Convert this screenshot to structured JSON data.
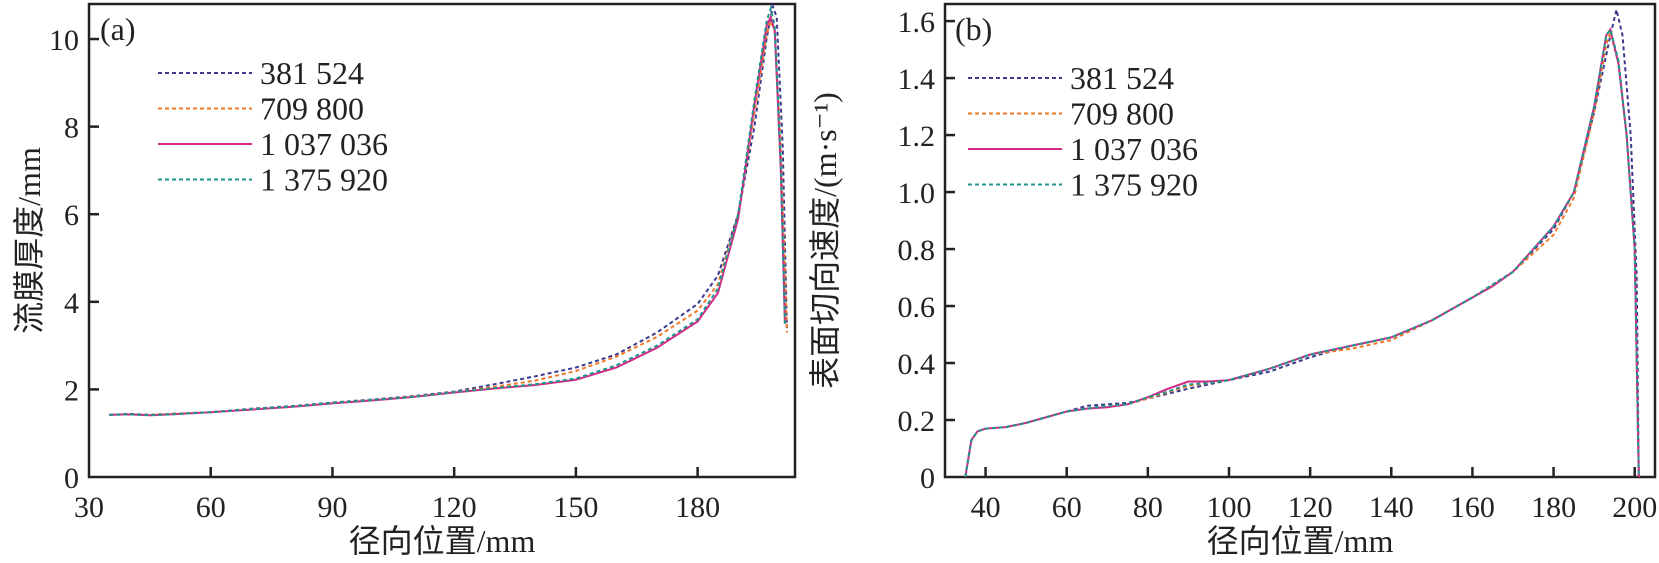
{
  "chart_data": [
    {
      "type": "line",
      "panel_label": "(a)",
      "xlabel": "径向位置/mm",
      "ylabel": "流膜厚度/mm",
      "xlim": [
        30,
        204
      ],
      "ylim": [
        0,
        10.8
      ],
      "xticks": [
        30,
        60,
        90,
        120,
        150,
        180
      ],
      "yticks": [
        0,
        2,
        4,
        6,
        8,
        10
      ],
      "grid": false,
      "legend_position": "top-left",
      "series": [
        {
          "name": "381 524",
          "color": "#3c3a8f",
          "dash": "4,3",
          "points": [
            [
              35,
              1.42
            ],
            [
              40,
              1.44
            ],
            [
              45,
              1.42
            ],
            [
              50,
              1.44
            ],
            [
              60,
              1.48
            ],
            [
              70,
              1.56
            ],
            [
              80,
              1.62
            ],
            [
              90,
              1.7
            ],
            [
              100,
              1.77
            ],
            [
              110,
              1.85
            ],
            [
              120,
              1.95
            ],
            [
              130,
              2.12
            ],
            [
              140,
              2.3
            ],
            [
              150,
              2.5
            ],
            [
              160,
              2.8
            ],
            [
              170,
              3.3
            ],
            [
              180,
              3.95
            ],
            [
              185,
              4.6
            ],
            [
              190,
              6.0
            ],
            [
              194,
              8.0
            ],
            [
              197,
              10.0
            ],
            [
              198.5,
              10.75
            ],
            [
              199.5,
              10.5
            ],
            [
              201,
              7.5
            ],
            [
              202,
              3.4
            ]
          ]
        },
        {
          "name": "709 800",
          "color": "#f07a2a",
          "dash": "4,3",
          "points": [
            [
              35,
              1.42
            ],
            [
              40,
              1.43
            ],
            [
              45,
              1.42
            ],
            [
              50,
              1.44
            ],
            [
              60,
              1.48
            ],
            [
              70,
              1.55
            ],
            [
              80,
              1.61
            ],
            [
              90,
              1.69
            ],
            [
              100,
              1.76
            ],
            [
              110,
              1.84
            ],
            [
              120,
              1.94
            ],
            [
              130,
              2.06
            ],
            [
              140,
              2.2
            ],
            [
              150,
              2.42
            ],
            [
              160,
              2.75
            ],
            [
              170,
              3.2
            ],
            [
              180,
              3.8
            ],
            [
              185,
              4.4
            ],
            [
              190,
              6.0
            ],
            [
              194,
              8.3
            ],
            [
              197,
              10.1
            ],
            [
              198,
              10.4
            ],
            [
              199,
              10.2
            ],
            [
              200.5,
              7.5
            ],
            [
              202,
              3.3
            ]
          ]
        },
        {
          "name": "1 037 036",
          "color": "#d42a86",
          "dash": "",
          "points": [
            [
              35,
              1.42
            ],
            [
              40,
              1.43
            ],
            [
              45,
              1.41
            ],
            [
              50,
              1.43
            ],
            [
              60,
              1.48
            ],
            [
              70,
              1.54
            ],
            [
              80,
              1.6
            ],
            [
              90,
              1.68
            ],
            [
              100,
              1.75
            ],
            [
              110,
              1.83
            ],
            [
              120,
              1.93
            ],
            [
              130,
              2.02
            ],
            [
              140,
              2.1
            ],
            [
              150,
              2.22
            ],
            [
              160,
              2.5
            ],
            [
              170,
              2.95
            ],
            [
              180,
              3.55
            ],
            [
              185,
              4.2
            ],
            [
              190,
              5.9
            ],
            [
              194,
              8.5
            ],
            [
              197,
              10.3
            ],
            [
              198,
              10.5
            ],
            [
              199,
              10.2
            ],
            [
              200.5,
              7.0
            ],
            [
              201.5,
              3.5
            ]
          ]
        },
        {
          "name": "1 375 920",
          "color": "#1f968c",
          "dash": "4,3",
          "points": [
            [
              35,
              1.42
            ],
            [
              40,
              1.43
            ],
            [
              45,
              1.41
            ],
            [
              50,
              1.43
            ],
            [
              60,
              1.48
            ],
            [
              70,
              1.55
            ],
            [
              80,
              1.61
            ],
            [
              90,
              1.69
            ],
            [
              100,
              1.76
            ],
            [
              110,
              1.83
            ],
            [
              120,
              1.94
            ],
            [
              130,
              2.03
            ],
            [
              140,
              2.12
            ],
            [
              150,
              2.25
            ],
            [
              160,
              2.55
            ],
            [
              170,
              3.0
            ],
            [
              180,
              3.6
            ],
            [
              185,
              4.3
            ],
            [
              190,
              6.0
            ],
            [
              194,
              8.6
            ],
            [
              197,
              10.4
            ],
            [
              198,
              10.7
            ],
            [
              199,
              10.3
            ],
            [
              200.5,
              7.2
            ],
            [
              201.5,
              3.5
            ]
          ]
        }
      ]
    },
    {
      "type": "line",
      "panel_label": "(b)",
      "xlabel": "径向位置/mm",
      "ylabel": "表面切向速度/(m·s⁻¹)",
      "xlim": [
        30,
        205
      ],
      "ylim": [
        0,
        1.66
      ],
      "xticks": [
        40,
        60,
        80,
        100,
        120,
        140,
        160,
        180,
        200
      ],
      "yticks": [
        0,
        0.2,
        0.4,
        0.6,
        0.8,
        1.0,
        1.2,
        1.4,
        1.6
      ],
      "ytick_labels": [
        "0",
        "0.2",
        "0.4",
        "0.6",
        "0.8",
        "1.0",
        "1.2",
        "1.4",
        "1.6"
      ],
      "grid": false,
      "legend_position": "top-left",
      "series": [
        {
          "name": "381 524",
          "color": "#3c3a8f",
          "dash": "4,3",
          "points": [
            [
              35,
              0
            ],
            [
              36.5,
              0.13
            ],
            [
              38,
              0.16
            ],
            [
              40,
              0.17
            ],
            [
              45,
              0.175
            ],
            [
              50,
              0.19
            ],
            [
              60,
              0.23
            ],
            [
              65,
              0.25
            ],
            [
              70,
              0.255
            ],
            [
              75,
              0.26
            ],
            [
              80,
              0.275
            ],
            [
              90,
              0.31
            ],
            [
              100,
              0.34
            ],
            [
              110,
              0.37
            ],
            [
              120,
              0.42
            ],
            [
              130,
              0.46
            ],
            [
              140,
              0.49
            ],
            [
              150,
              0.55
            ],
            [
              160,
              0.63
            ],
            [
              170,
              0.72
            ],
            [
              180,
              0.87
            ],
            [
              185,
              1.0
            ],
            [
              190,
              1.28
            ],
            [
              194,
              1.55
            ],
            [
              195.5,
              1.64
            ],
            [
              197,
              1.55
            ],
            [
              199,
              1.2
            ],
            [
              200.5,
              0.7
            ],
            [
              201,
              0
            ]
          ]
        },
        {
          "name": "709 800",
          "color": "#f07a2a",
          "dash": "4,3",
          "points": [
            [
              35,
              0
            ],
            [
              36.5,
              0.13
            ],
            [
              38,
              0.16
            ],
            [
              40,
              0.17
            ],
            [
              45,
              0.175
            ],
            [
              50,
              0.19
            ],
            [
              60,
              0.23
            ],
            [
              65,
              0.24
            ],
            [
              70,
              0.25
            ],
            [
              75,
              0.255
            ],
            [
              80,
              0.275
            ],
            [
              90,
              0.32
            ],
            [
              100,
              0.34
            ],
            [
              110,
              0.38
            ],
            [
              120,
              0.43
            ],
            [
              130,
              0.45
            ],
            [
              140,
              0.48
            ],
            [
              150,
              0.55
            ],
            [
              160,
              0.63
            ],
            [
              170,
              0.72
            ],
            [
              180,
              0.85
            ],
            [
              185,
              0.98
            ],
            [
              190,
              1.28
            ],
            [
              193,
              1.52
            ],
            [
              194,
              1.56
            ],
            [
              196,
              1.45
            ],
            [
              198,
              1.2
            ],
            [
              200,
              0.8
            ],
            [
              201,
              0
            ]
          ]
        },
        {
          "name": "1 037 036",
          "color": "#d42a86",
          "dash": "",
          "points": [
            [
              35,
              0
            ],
            [
              36.5,
              0.13
            ],
            [
              38,
              0.16
            ],
            [
              40,
              0.17
            ],
            [
              45,
              0.175
            ],
            [
              50,
              0.19
            ],
            [
              60,
              0.23
            ],
            [
              65,
              0.24
            ],
            [
              70,
              0.245
            ],
            [
              75,
              0.255
            ],
            [
              80,
              0.28
            ],
            [
              85,
              0.31
            ],
            [
              90,
              0.335
            ],
            [
              95,
              0.335
            ],
            [
              100,
              0.34
            ],
            [
              110,
              0.38
            ],
            [
              120,
              0.43
            ],
            [
              130,
              0.46
            ],
            [
              140,
              0.49
            ],
            [
              150,
              0.55
            ],
            [
              160,
              0.63
            ],
            [
              165,
              0.67
            ],
            [
              170,
              0.72
            ],
            [
              180,
              0.88
            ],
            [
              185,
              1.0
            ],
            [
              190,
              1.3
            ],
            [
              193,
              1.55
            ],
            [
              194,
              1.57
            ],
            [
              196,
              1.45
            ],
            [
              198,
              1.2
            ],
            [
              200,
              0.8
            ],
            [
              201,
              0
            ]
          ]
        },
        {
          "name": "1 375 920",
          "color": "#1f968c",
          "dash": "4,3",
          "points": [
            [
              35,
              0
            ],
            [
              36.5,
              0.13
            ],
            [
              38,
              0.16
            ],
            [
              40,
              0.17
            ],
            [
              45,
              0.175
            ],
            [
              50,
              0.19
            ],
            [
              60,
              0.23
            ],
            [
              65,
              0.24
            ],
            [
              70,
              0.25
            ],
            [
              75,
              0.255
            ],
            [
              80,
              0.28
            ],
            [
              85,
              0.3
            ],
            [
              90,
              0.325
            ],
            [
              95,
              0.33
            ],
            [
              100,
              0.34
            ],
            [
              110,
              0.38
            ],
            [
              120,
              0.43
            ],
            [
              130,
              0.46
            ],
            [
              140,
              0.49
            ],
            [
              150,
              0.55
            ],
            [
              160,
              0.63
            ],
            [
              170,
              0.72
            ],
            [
              180,
              0.88
            ],
            [
              185,
              1.0
            ],
            [
              190,
              1.3
            ],
            [
              193,
              1.55
            ],
            [
              194,
              1.57
            ],
            [
              196,
              1.46
            ],
            [
              198,
              1.2
            ],
            [
              200,
              0.8
            ],
            [
              201,
              0
            ]
          ]
        }
      ]
    }
  ]
}
